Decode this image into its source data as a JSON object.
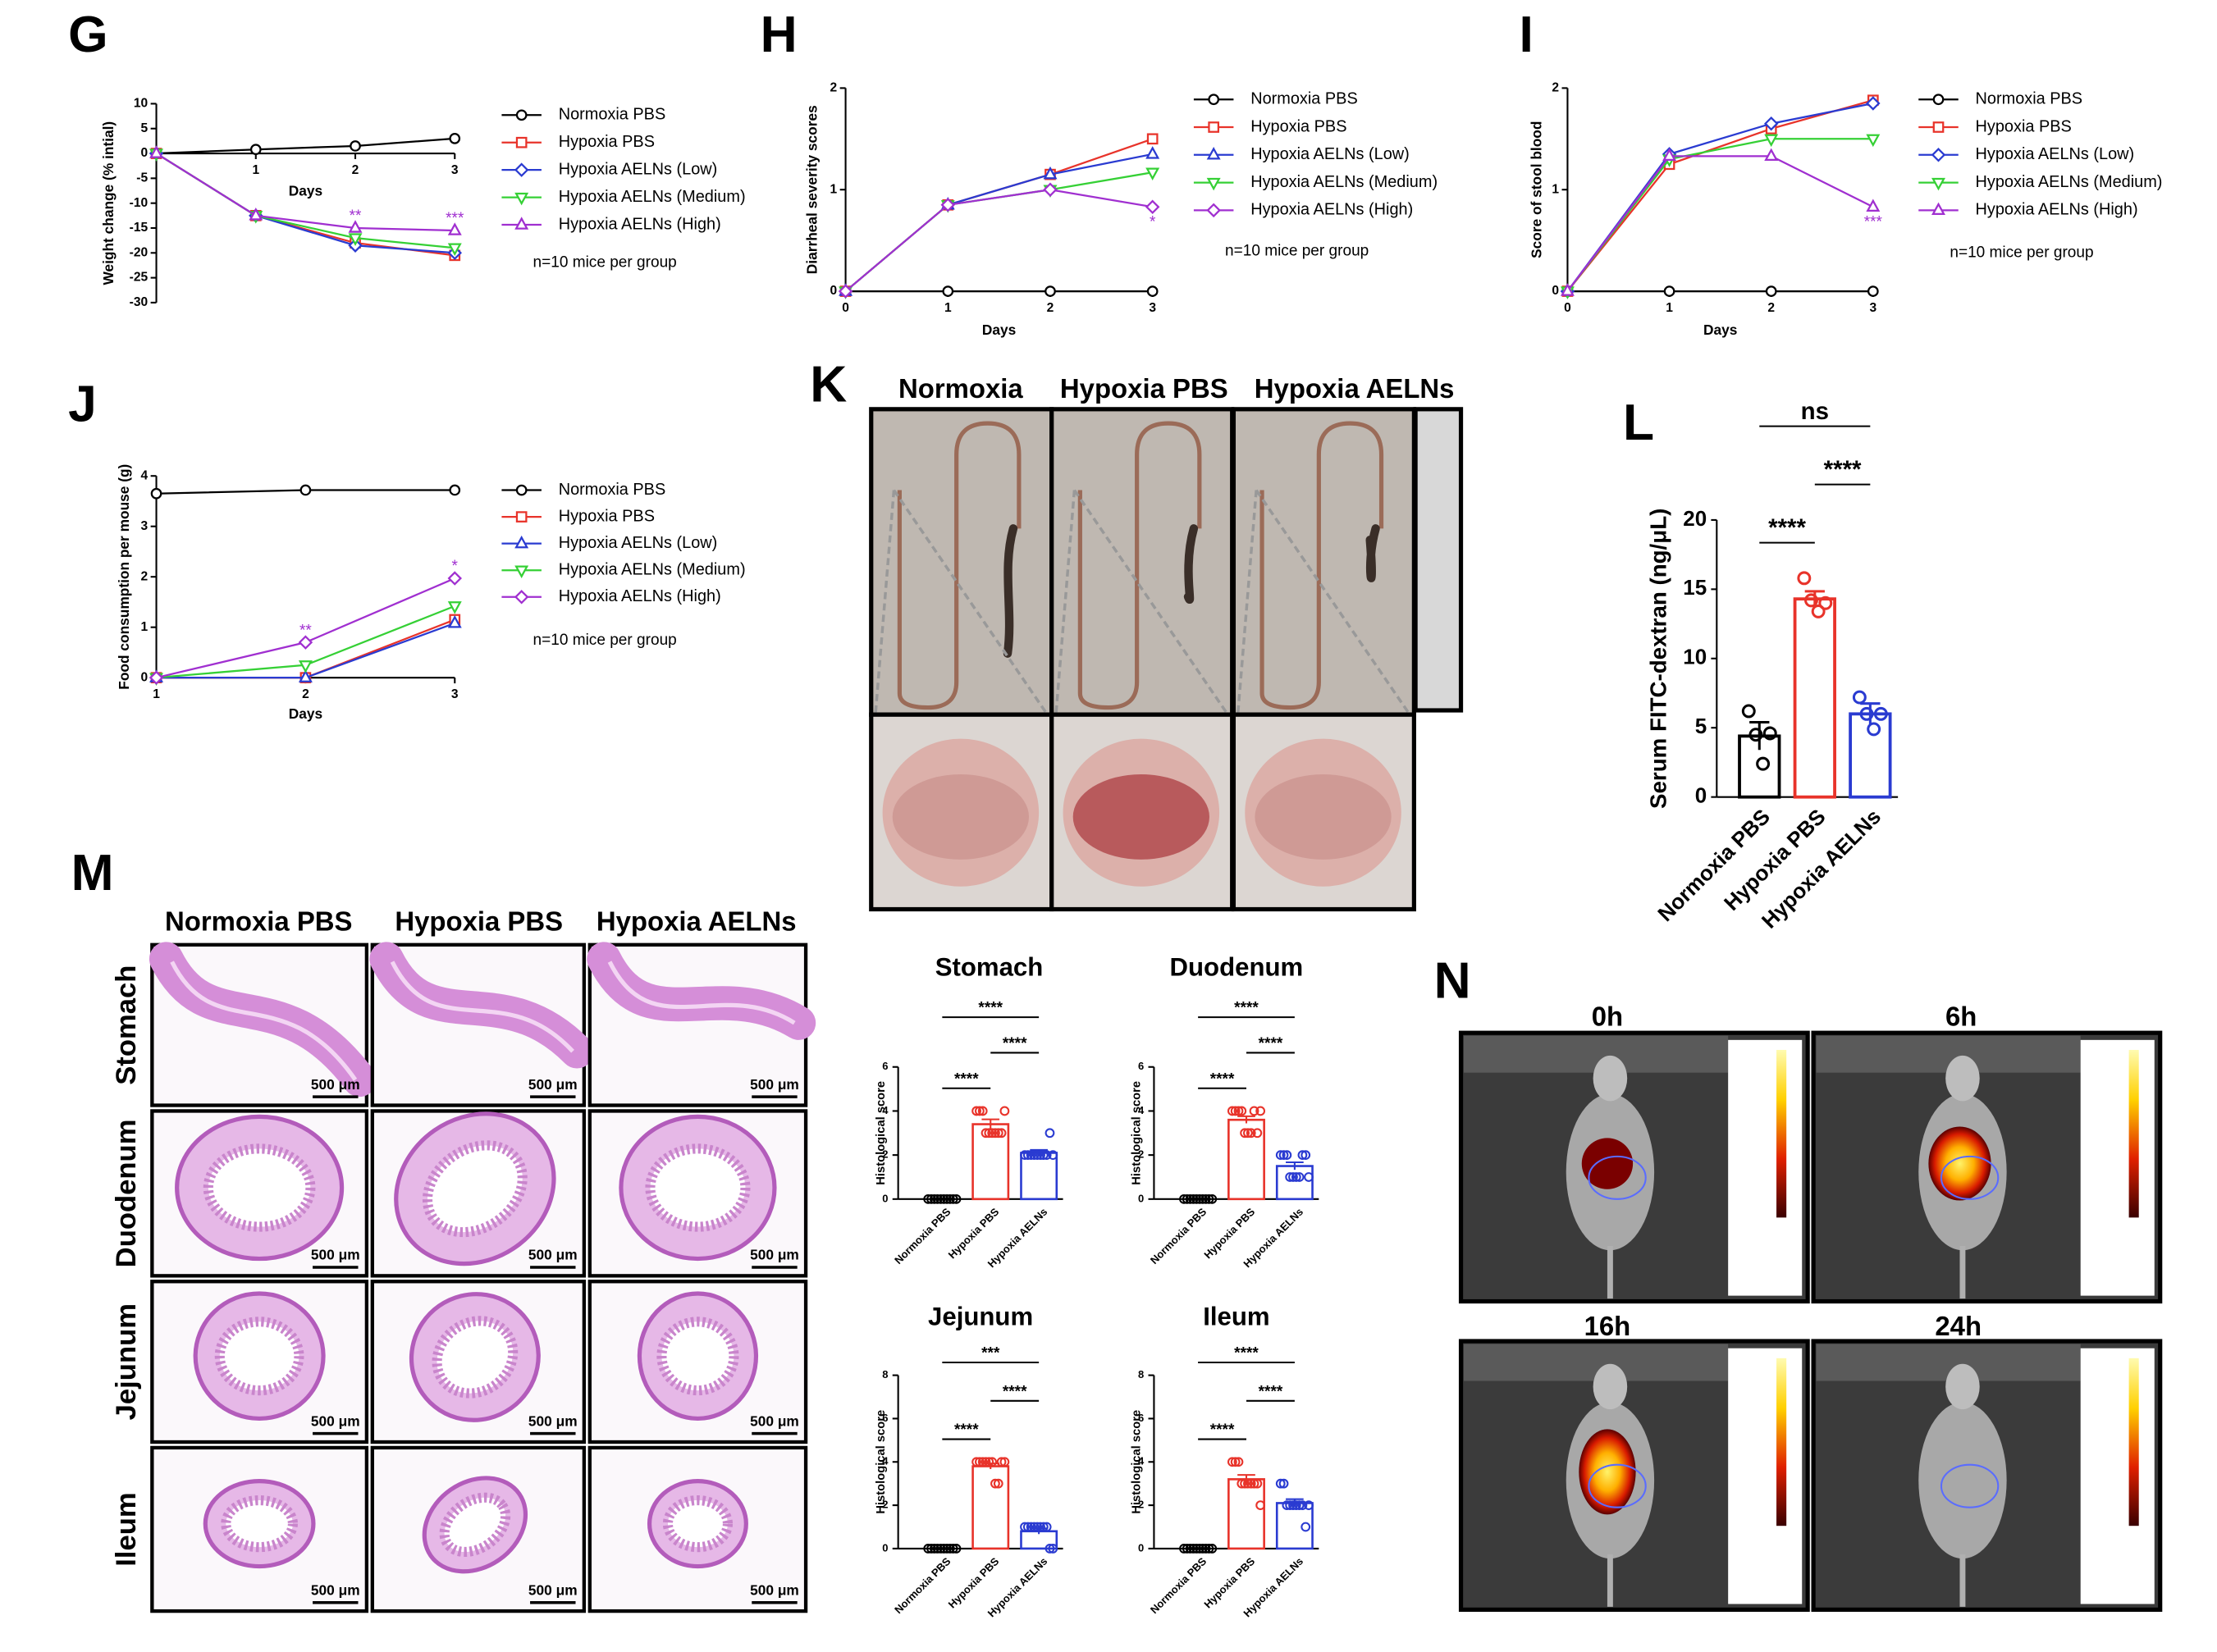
{
  "chart_data": [
    {
      "panel": "G",
      "type": "line",
      "ylabel": "Weight change (% intial)",
      "xlabel": "Days",
      "x": [
        0,
        1,
        2,
        3
      ],
      "xlim": [
        0,
        3
      ],
      "xticks": [
        1,
        2,
        3
      ],
      "ylim": [
        -30,
        10
      ],
      "yticks": [
        10,
        5,
        0,
        -5,
        -10,
        -15,
        -20,
        -25,
        -30
      ],
      "series": [
        {
          "name": "Normoxia PBS",
          "color": "#000000",
          "marker": "circle",
          "values": [
            0,
            0.8,
            1.5,
            3
          ]
        },
        {
          "name": "Hypoxia PBS",
          "color": "#e8332a",
          "marker": "square",
          "values": [
            0,
            -12.5,
            -18,
            -20.5
          ]
        },
        {
          "name": "Hypoxia AELNs (Low)",
          "color": "#2a3bd1",
          "marker": "diamond",
          "values": [
            0,
            -12.5,
            -18.5,
            -20
          ]
        },
        {
          "name": "Hypoxia AELNs (Medium)",
          "color": "#35d035",
          "marker": "triangle-down",
          "values": [
            0,
            -12.5,
            -17,
            -19
          ]
        },
        {
          "name": "Hypoxia AELNs (High)",
          "color": "#a02fd0",
          "marker": "triangle",
          "values": [
            0,
            -12.5,
            -15,
            -15.5
          ]
        }
      ],
      "annotations": [
        {
          "text": "**",
          "x": 2
        },
        {
          "text": "***",
          "x": 3
        }
      ],
      "note": "n=10 mice per group"
    },
    {
      "panel": "H",
      "type": "line",
      "ylabel": "Diarrheal severity scores",
      "xlabel": "Days",
      "x": [
        0,
        1,
        2,
        3
      ],
      "xlim": [
        0,
        3
      ],
      "xticks": [
        0,
        1,
        2,
        3
      ],
      "ylim": [
        0,
        2
      ],
      "yticks": [
        0,
        1,
        2
      ],
      "series": [
        {
          "name": "Normoxia PBS",
          "color": "#000000",
          "marker": "circle",
          "values": [
            0,
            0,
            0,
            0
          ]
        },
        {
          "name": "Hypoxia PBS",
          "color": "#e8332a",
          "marker": "square",
          "values": [
            0,
            0.85,
            1.15,
            1.5
          ]
        },
        {
          "name": "Hypoxia AELNs (Low)",
          "color": "#2a3bd1",
          "marker": "triangle",
          "values": [
            0,
            0.85,
            1.15,
            1.35
          ]
        },
        {
          "name": "Hypoxia AELNs (Medium)",
          "color": "#35d035",
          "marker": "triangle-down",
          "values": [
            0,
            0.85,
            1.0,
            1.17
          ]
        },
        {
          "name": "Hypoxia AELNs (High)",
          "color": "#a02fd0",
          "marker": "diamond",
          "values": [
            0,
            0.85,
            1.0,
            0.83
          ]
        }
      ],
      "annotations": [
        {
          "text": "*",
          "x": 3
        }
      ],
      "note": "n=10 mice per group"
    },
    {
      "panel": "I",
      "type": "line",
      "ylabel": "Score of stool blood",
      "xlabel": "Days",
      "x": [
        0,
        1,
        2,
        3
      ],
      "xlim": [
        0,
        3
      ],
      "xticks": [
        0,
        1,
        2,
        3
      ],
      "ylim": [
        0,
        2
      ],
      "yticks": [
        0,
        1,
        2
      ],
      "series": [
        {
          "name": "Normoxia PBS",
          "color": "#000000",
          "marker": "circle",
          "values": [
            0,
            0,
            0,
            0
          ]
        },
        {
          "name": "Hypoxia PBS",
          "color": "#e8332a",
          "marker": "square",
          "values": [
            0,
            1.25,
            1.6,
            1.88
          ]
        },
        {
          "name": "Hypoxia AELNs (Low)",
          "color": "#2a3bd1",
          "marker": "diamond",
          "values": [
            0,
            1.35,
            1.65,
            1.85
          ]
        },
        {
          "name": "Hypoxia AELNs (Medium)",
          "color": "#35d035",
          "marker": "triangle-down",
          "values": [
            0,
            1.3,
            1.5,
            1.5
          ]
        },
        {
          "name": "Hypoxia AELNs (High)",
          "color": "#a02fd0",
          "marker": "triangle",
          "values": [
            0,
            1.33,
            1.33,
            0.83
          ]
        }
      ],
      "annotations": [
        {
          "text": "***",
          "x": 3
        }
      ],
      "note": "n=10 mice per group"
    },
    {
      "panel": "J",
      "type": "line",
      "ylabel": "Food consumption per mouse (g)",
      "xlabel": "Days",
      "x": [
        1,
        2,
        3
      ],
      "xlim": [
        1,
        3
      ],
      "xticks": [
        1,
        2,
        3
      ],
      "ylim": [
        0,
        4
      ],
      "yticks": [
        0,
        1,
        2,
        3,
        4
      ],
      "series": [
        {
          "name": "Normoxia PBS",
          "color": "#000000",
          "marker": "circle",
          "values": [
            3.65,
            3.72,
            3.72
          ]
        },
        {
          "name": "Hypoxia PBS",
          "color": "#e8332a",
          "marker": "square",
          "values": [
            0,
            0,
            1.15
          ]
        },
        {
          "name": "Hypoxia AELNs (Low)",
          "color": "#2a3bd1",
          "marker": "triangle",
          "values": [
            0,
            0,
            1.08
          ]
        },
        {
          "name": "Hypoxia AELNs (Medium)",
          "color": "#35d035",
          "marker": "triangle-down",
          "values": [
            0,
            0.25,
            1.42
          ]
        },
        {
          "name": "Hypoxia AELNs (High)",
          "color": "#a02fd0",
          "marker": "diamond",
          "values": [
            0,
            0.7,
            1.97
          ]
        }
      ],
      "annotations": [
        {
          "text": "**",
          "x": 2
        },
        {
          "text": "*",
          "x": 3
        }
      ],
      "note": "n=10 mice per group"
    },
    {
      "panel": "L",
      "type": "bar",
      "ylabel": "Serum FITC-dextran (ng/μL)",
      "categories": [
        "Normoxia PBS",
        "Hypoxia PBS",
        "Hypoxia AELNs"
      ],
      "colors": [
        "#000000",
        "#e8332a",
        "#2a3bd1"
      ],
      "values": [
        4.4,
        14.3,
        6.0
      ],
      "errors": [
        1.0,
        0.55,
        0.75
      ],
      "points": [
        [
          6.2,
          4.5,
          2.4,
          4.6
        ],
        [
          15.8,
          14.2,
          13.4,
          14.0
        ],
        [
          7.2,
          6.0,
          4.9,
          6.0
        ]
      ],
      "ylim": [
        0,
        20
      ],
      "yticks": [
        0,
        5,
        10,
        15,
        20
      ],
      "comparisons": [
        {
          "between": [
            0,
            1
          ],
          "label": "****"
        },
        {
          "between": [
            1,
            2
          ],
          "label": "****"
        },
        {
          "between": [
            0,
            2
          ],
          "label": "ns"
        }
      ]
    },
    {
      "type": "bar",
      "title": "Stomach",
      "ylabel": "Histological score",
      "categories": [
        "Normoxia PBS",
        "Hypoxia PBS",
        "Hypoxia AELNs"
      ],
      "colors": [
        "#000000",
        "#e8332a",
        "#2a3bd1"
      ],
      "values": [
        0,
        3.4,
        2.1
      ],
      "errors": [
        0,
        0.22,
        0.13
      ],
      "points": [
        [
          0,
          0,
          0,
          0,
          0,
          0,
          0,
          0,
          0,
          0
        ],
        [
          4,
          4,
          4,
          3,
          3,
          3,
          3,
          3,
          3,
          4
        ],
        [
          2,
          2,
          2,
          2,
          2,
          2,
          2,
          2,
          3,
          2
        ]
      ],
      "ylim": [
        0,
        6
      ],
      "yticks": [
        0,
        2,
        4,
        6
      ],
      "comparisons": [
        {
          "between": [
            0,
            1
          ],
          "label": "****"
        },
        {
          "between": [
            1,
            2
          ],
          "label": "****"
        },
        {
          "between": [
            0,
            2
          ],
          "label": "****"
        }
      ]
    },
    {
      "type": "bar",
      "title": "Duodenum",
      "ylabel": "Histological score",
      "categories": [
        "Normoxia PBS",
        "Hypoxia PBS",
        "Hypoxia AELNs"
      ],
      "colors": [
        "#000000",
        "#e8332a",
        "#2a3bd1"
      ],
      "values": [
        0,
        3.6,
        1.5
      ],
      "errors": [
        0,
        0.16,
        0.17
      ],
      "points": [
        [
          0,
          0,
          0,
          0,
          0,
          0,
          0,
          0,
          0,
          0
        ],
        [
          4,
          4,
          4,
          4,
          3,
          3,
          3,
          4,
          3,
          4
        ],
        [
          2,
          2,
          2,
          1,
          1,
          1,
          1,
          2,
          2,
          1
        ]
      ],
      "ylim": [
        0,
        6
      ],
      "yticks": [
        0,
        2,
        4,
        6
      ],
      "comparisons": [
        {
          "between": [
            0,
            1
          ],
          "label": "****"
        },
        {
          "between": [
            1,
            2
          ],
          "label": "****"
        },
        {
          "between": [
            0,
            2
          ],
          "label": "****"
        }
      ]
    },
    {
      "type": "bar",
      "title": "Jejunum",
      "ylabel": "Histological score",
      "categories": [
        "Normoxia PBS",
        "Hypoxia PBS",
        "Hypoxia AELNs"
      ],
      "colors": [
        "#000000",
        "#e8332a",
        "#2a3bd1"
      ],
      "values": [
        0,
        3.8,
        0.8
      ],
      "errors": [
        0,
        0.13,
        0.13
      ],
      "points": [
        [
          0,
          0,
          0,
          0,
          0,
          0,
          0,
          0,
          0,
          0
        ],
        [
          4,
          4,
          4,
          4,
          4,
          4,
          3,
          3,
          4,
          4
        ],
        [
          1,
          1,
          1,
          1,
          1,
          1,
          1,
          1,
          0,
          0
        ]
      ],
      "ylim": [
        0,
        8
      ],
      "yticks": [
        0,
        2,
        4,
        6,
        8
      ],
      "comparisons": [
        {
          "between": [
            0,
            1
          ],
          "label": "****"
        },
        {
          "between": [
            1,
            2
          ],
          "label": "****"
        },
        {
          "between": [
            0,
            2
          ],
          "label": "***"
        }
      ]
    },
    {
      "type": "bar",
      "title": "Ileum",
      "ylabel": "Histological score",
      "categories": [
        "Normoxia PBS",
        "Hypoxia PBS",
        "Hypoxia AELNs"
      ],
      "colors": [
        "#000000",
        "#e8332a",
        "#2a3bd1"
      ],
      "values": [
        0,
        3.2,
        2.1
      ],
      "errors": [
        0,
        0.2,
        0.18
      ],
      "points": [
        [
          0,
          0,
          0,
          0,
          0,
          0,
          0,
          0,
          0,
          0
        ],
        [
          4,
          4,
          4,
          3,
          3,
          3,
          3,
          3,
          3,
          2
        ],
        [
          3,
          3,
          2,
          2,
          2,
          2,
          2,
          2,
          1,
          2
        ]
      ],
      "ylim": [
        0,
        8
      ],
      "yticks": [
        0,
        2,
        4,
        6,
        8
      ],
      "comparisons": [
        {
          "between": [
            0,
            1
          ],
          "label": "****"
        },
        {
          "between": [
            1,
            2
          ],
          "label": "****"
        },
        {
          "between": [
            0,
            2
          ],
          "label": "****"
        }
      ]
    }
  ],
  "panel_K": {
    "panel": "K",
    "columns": [
      "Normoxia",
      "Hypoxia PBS",
      "Hypoxia AELNs"
    ]
  },
  "panel_M": {
    "panel": "M",
    "columns": [
      "Normoxia PBS",
      "Hypoxia PBS",
      "Hypoxia AELNs"
    ],
    "rows": [
      "Stomach",
      "Duodenum",
      "Jejunum",
      "Ileum"
    ],
    "scale_bar": "500 μm"
  },
  "panel_N": {
    "panel": "N",
    "times": [
      "0h",
      "6h",
      "16h",
      "24h"
    ]
  }
}
